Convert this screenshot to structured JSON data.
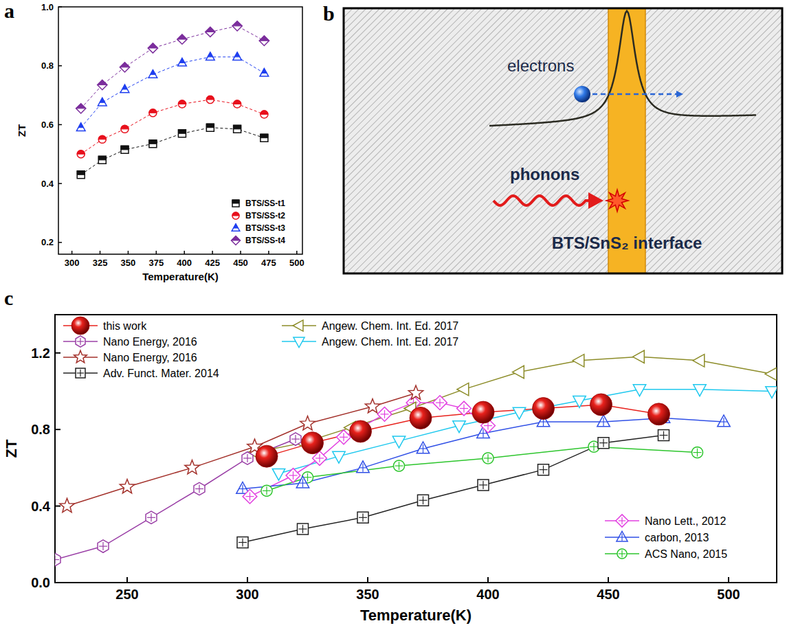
{
  "chart_data": [
    {
      "panel": "a",
      "type": "line",
      "xlabel": "Temperature(K)",
      "ylabel": "ZT",
      "xlim": [
        288,
        505
      ],
      "xticks": [
        300,
        325,
        350,
        375,
        400,
        425,
        450,
        475,
        500
      ],
      "ylim": [
        0.16,
        1.0
      ],
      "yticks": [
        0.2,
        0.4,
        0.6,
        0.8,
        {
          "value": 1,
          "label": "1.0"
        }
      ],
      "grid": false,
      "legend": "lower right",
      "series": [
        {
          "name": "BTS/SS-t1",
          "color": "#111111",
          "marker": "half-square",
          "line_style": "dashed",
          "x": [
            308,
            327,
            347,
            372,
            398,
            423,
            447,
            471
          ],
          "values": [
            0.43,
            0.48,
            0.515,
            0.535,
            0.57,
            0.59,
            0.585,
            0.555
          ]
        },
        {
          "name": "BTS/SS-t2",
          "color": "#e8101c",
          "marker": "half-circle",
          "line_style": "dashed",
          "x": [
            308,
            327,
            347,
            372,
            398,
            423,
            447,
            471
          ],
          "values": [
            0.5,
            0.55,
            0.585,
            0.64,
            0.67,
            0.685,
            0.67,
            0.635
          ]
        },
        {
          "name": "BTS/SS-t3",
          "color": "#1f3ff0",
          "marker": "half-triangle",
          "line_style": "dashed",
          "x": [
            308,
            327,
            347,
            372,
            398,
            423,
            447,
            471
          ],
          "values": [
            0.59,
            0.675,
            0.72,
            0.77,
            0.81,
            0.83,
            0.83,
            0.775
          ]
        },
        {
          "name": "BTS/SS-t4",
          "color": "#7b2d9c",
          "marker": "half-diamond",
          "line_style": "dashed",
          "x": [
            308,
            327,
            347,
            372,
            398,
            423,
            447,
            471
          ],
          "values": [
            0.655,
            0.735,
            0.795,
            0.86,
            0.89,
            0.915,
            0.935,
            0.885
          ]
        }
      ]
    },
    {
      "panel": "c",
      "type": "line",
      "xlabel": "Temperature(K)",
      "ylabel": "ZT",
      "xlim": [
        220,
        520
      ],
      "xticks": [
        250,
        300,
        350,
        400,
        450,
        500
      ],
      "ylim": [
        0,
        1.4
      ],
      "yticks": [
        {
          "value": 0,
          "label": "0.0"
        },
        0.4,
        0.8,
        1.2
      ],
      "grid": false,
      "legend": "upper left",
      "series": [
        {
          "name": "this work",
          "color": "#e8211c",
          "marker": "sphere",
          "line_style": "solid",
          "x": [
            308,
            327,
            347,
            372,
            398,
            423,
            447,
            471
          ],
          "values": [
            0.66,
            0.73,
            0.79,
            0.86,
            0.89,
            0.91,
            0.93,
            0.88
          ]
        },
        {
          "name": "Nano Energy, 2016",
          "color": "#9a3fa6",
          "marker": "cross-hexagon",
          "line_style": "solid",
          "x": [
            220,
            240,
            260,
            280,
            300,
            320
          ],
          "values": [
            0.12,
            0.19,
            0.34,
            0.49,
            0.65,
            0.75
          ]
        },
        {
          "name": "Nano Energy, 2016",
          "color": "#a3312b",
          "marker": "star",
          "line_style": "solid",
          "x": [
            225,
            250,
            277,
            303,
            325,
            352,
            370
          ],
          "values": [
            0.4,
            0.5,
            0.6,
            0.71,
            0.83,
            0.92,
            0.99
          ]
        },
        {
          "name": "Adv. Funct. Mater. 2014",
          "color": "#222222",
          "marker": "cross-square",
          "line_style": "solid",
          "x": [
            298,
            323,
            348,
            373,
            398,
            423,
            448,
            473
          ],
          "values": [
            0.21,
            0.28,
            0.34,
            0.43,
            0.51,
            0.59,
            0.73,
            0.77
          ]
        },
        {
          "name": "Angew. Chem. Int. Ed. 2017",
          "color": "#8c8c28",
          "marker": "triangle-left",
          "line_style": "solid",
          "x": [
            303,
            323,
            343,
            368,
            390,
            413,
            438,
            463,
            488,
            518
          ],
          "values": [
            0.68,
            0.73,
            0.81,
            0.91,
            1.01,
            1.1,
            1.16,
            1.18,
            1.16,
            1.09
          ]
        },
        {
          "name": "Angew. Chem. Int. Ed. 2017",
          "color": "#1ec8ee",
          "marker": "triangle-down",
          "line_style": "solid",
          "x": [
            313,
            338,
            363,
            388,
            413,
            438,
            463,
            488,
            518
          ],
          "values": [
            0.57,
            0.66,
            0.74,
            0.82,
            0.89,
            0.95,
            1.01,
            1.01,
            1.0
          ]
        },
        {
          "name": "Nano Lett., 2012",
          "color": "#e23fe0",
          "marker": "cross-diamond",
          "line_style": "solid",
          "x": [
            301,
            319,
            330,
            340,
            357,
            369,
            380,
            390,
            400
          ],
          "values": [
            0.45,
            0.56,
            0.65,
            0.76,
            0.88,
            0.94,
            0.94,
            0.91,
            0.82
          ]
        },
        {
          "name": "carbon, 2013",
          "color": "#2f4fe6",
          "marker": "cross-triangle",
          "line_style": "solid",
          "x": [
            298,
            323,
            348,
            373,
            398,
            423,
            448,
            473,
            498
          ],
          "values": [
            0.49,
            0.52,
            0.6,
            0.7,
            0.78,
            0.84,
            0.84,
            0.86,
            0.84
          ]
        },
        {
          "name": "ACS Nano, 2015",
          "color": "#2cc52c",
          "marker": "cross-circle",
          "line_style": "solid",
          "x": [
            308,
            325,
            363,
            400,
            444,
            487
          ],
          "values": [
            0.48,
            0.55,
            0.61,
            0.65,
            0.71,
            0.68
          ]
        }
      ]
    }
  ],
  "diagram": {
    "panel": "b",
    "electrons_label": "electrons",
    "phonons_label": "phonons",
    "interface_label": "BTS/SnS₂ interface"
  }
}
